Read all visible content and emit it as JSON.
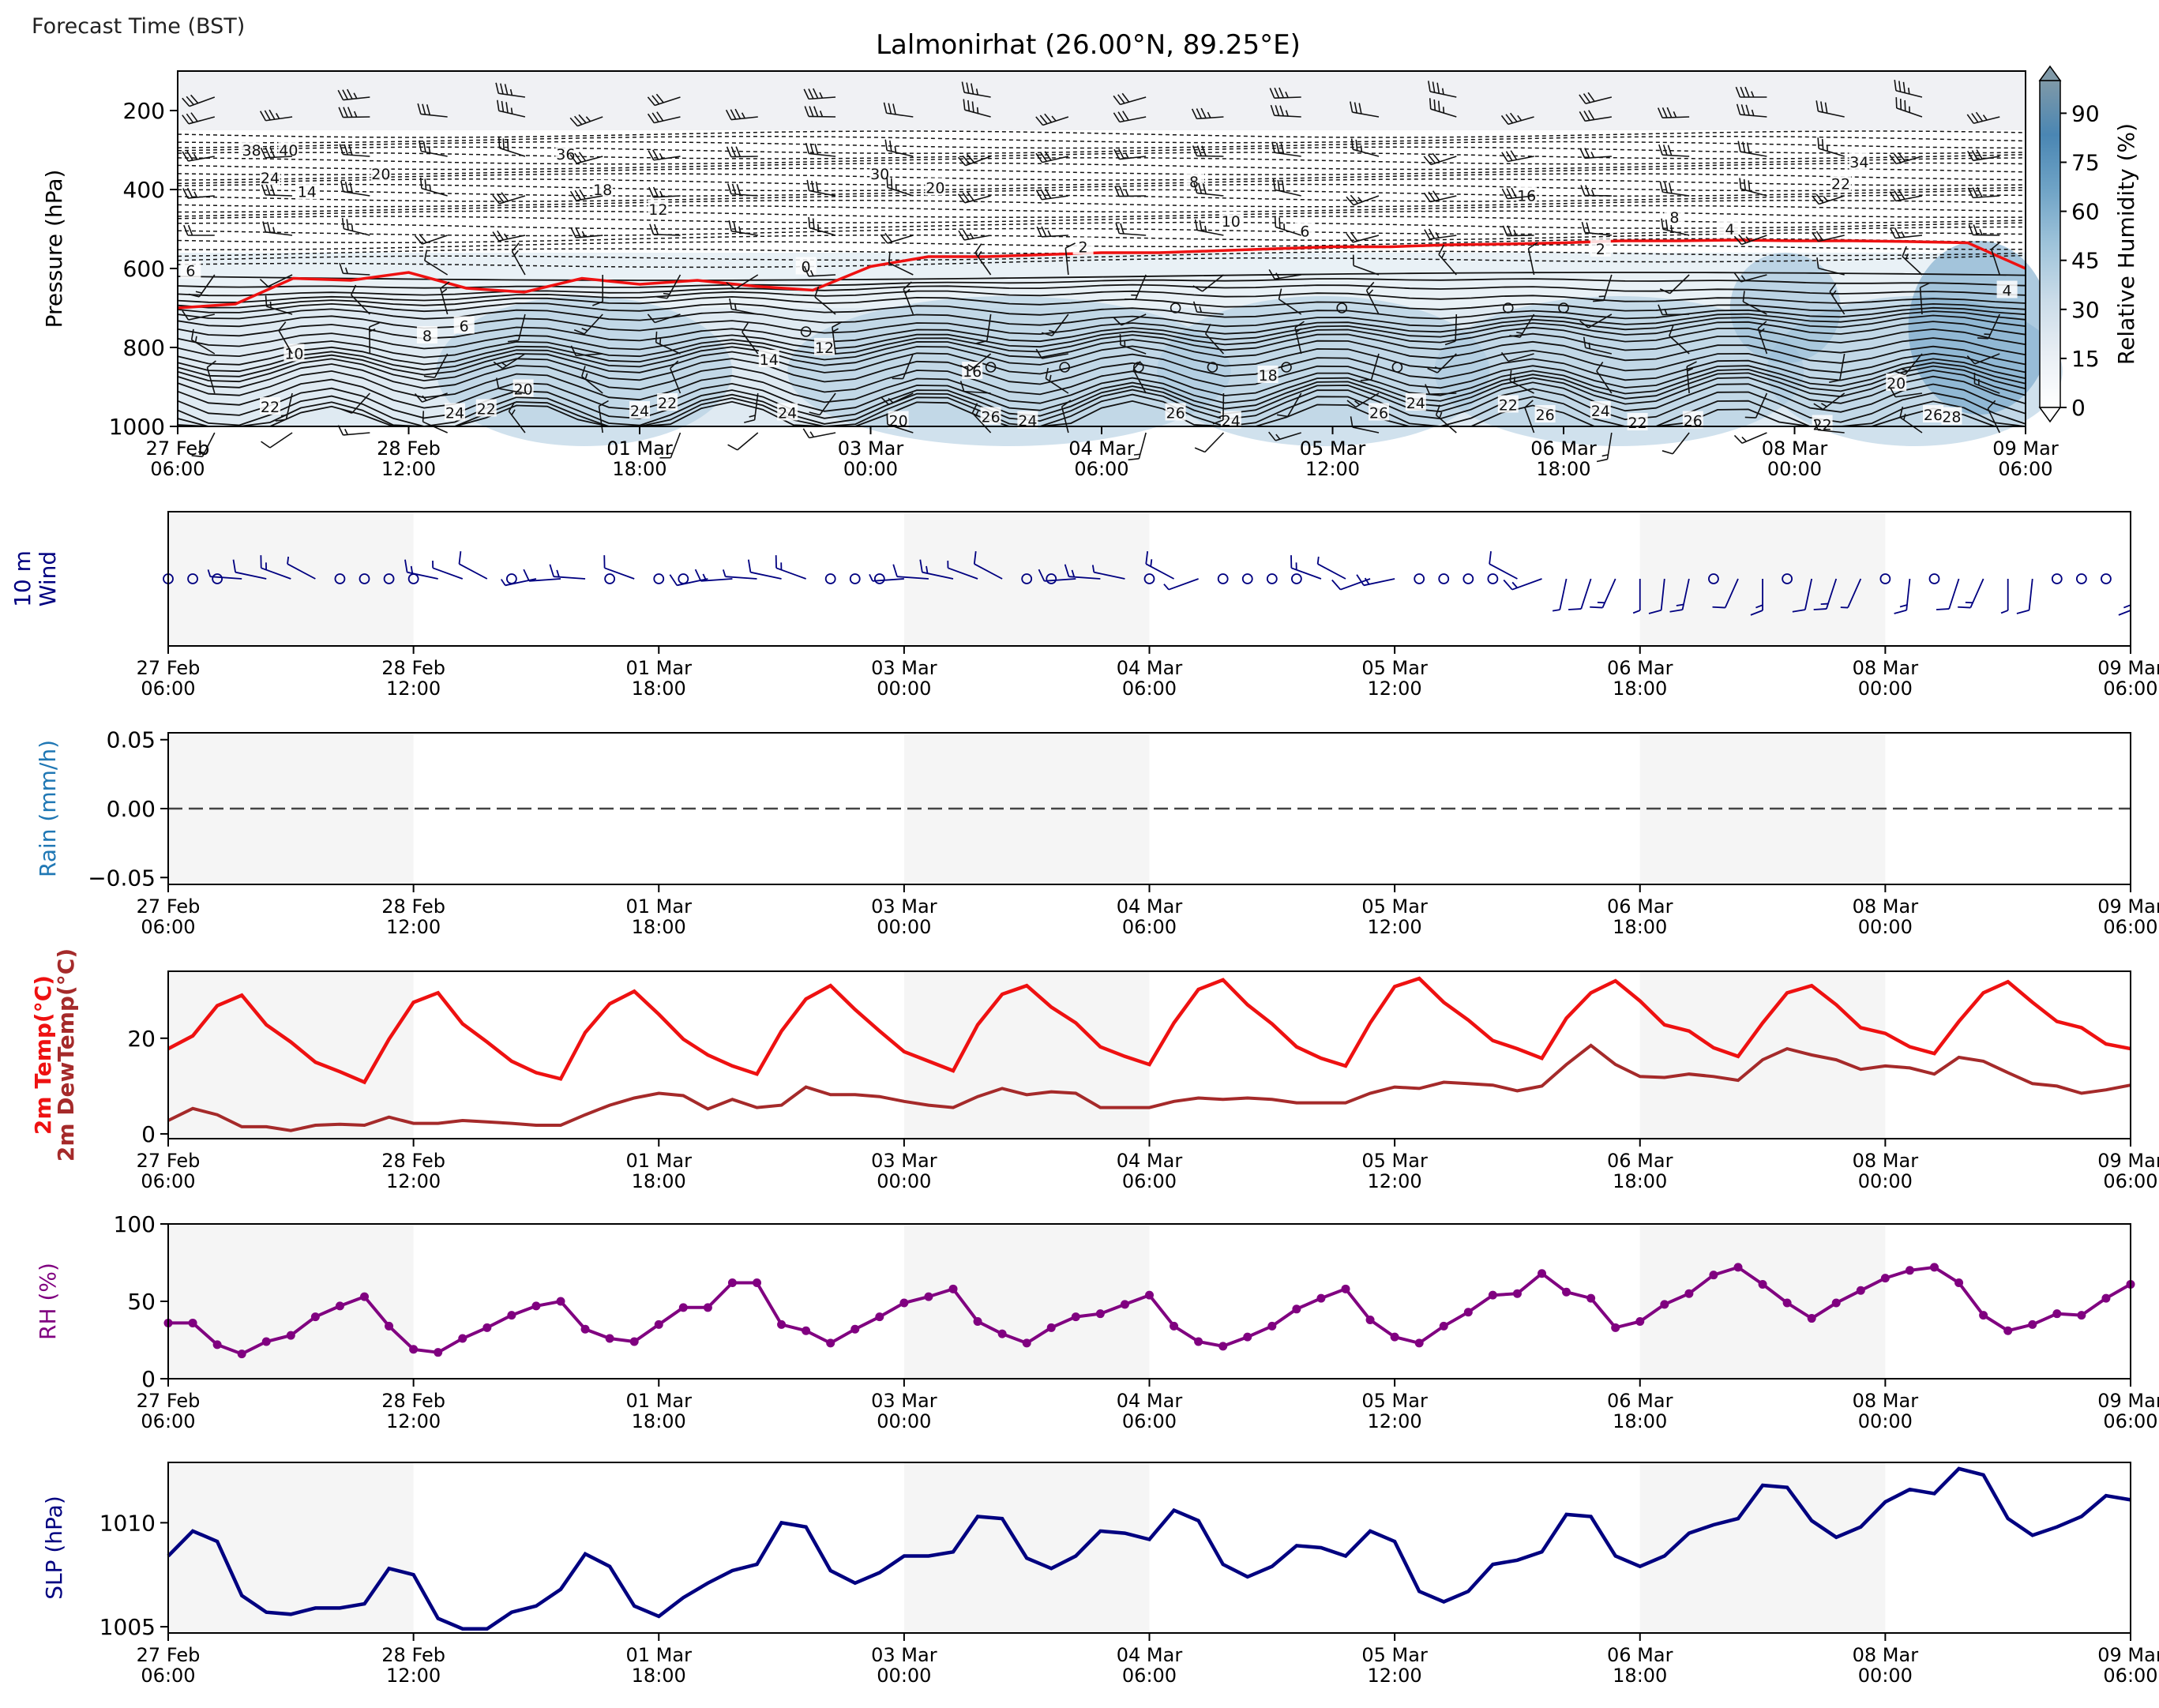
{
  "header": {
    "forecast_time_label": "Forecast Time (BST)"
  },
  "colors": {
    "freezing_line": "#ee1111",
    "temp": "#ee1111",
    "dewpoint": "#a52a2a",
    "rh": "#800080",
    "slp": "#000080",
    "wind10": "#000080",
    "rain_label": "#1f77b4",
    "night_shade": "#f5f5f5",
    "humidity_scale": [
      "#ffffff",
      "#e8eef4",
      "#c9dbe8",
      "#9ec3da",
      "#6fa3c6",
      "#4a86b3",
      "#7f99a8"
    ]
  },
  "chart_data": [
    {
      "id": "cross_section",
      "type": "heatmap",
      "title": "Lalmonirhat (26.00°N, 89.25°E)",
      "ylabel": "Pressure (hPa)",
      "y_ticks": [
        "200",
        "400",
        "600",
        "800",
        "1000"
      ],
      "ylim": [
        1000,
        100
      ],
      "x_ticks": [
        [
          "27 Feb",
          "06:00"
        ],
        [
          "28 Feb",
          "12:00"
        ],
        [
          "01 Mar",
          "18:00"
        ],
        [
          "03 Mar",
          "00:00"
        ],
        [
          "04 Mar",
          "06:00"
        ],
        [
          "05 Mar",
          "12:00"
        ],
        [
          "06 Mar",
          "18:00"
        ],
        [
          "08 Mar",
          "00:00"
        ],
        [
          "09 Mar",
          "06:00"
        ]
      ],
      "colorbar": {
        "label": "Relative Humidity (%)",
        "ticks": [
          "0",
          "15",
          "30",
          "45",
          "60",
          "75",
          "90"
        ],
        "range": [
          0,
          100
        ]
      },
      "freezing_level_hpa": [
        700,
        690,
        625,
        630,
        610,
        650,
        660,
        625,
        640,
        630,
        645,
        655,
        595,
        570,
        570,
        565,
        560,
        560,
        555,
        550,
        545,
        545,
        540,
        538,
        535,
        530,
        530,
        528,
        530,
        530,
        532,
        535,
        600
      ],
      "contour_labels": [
        {
          "t": 0.04,
          "p": 300,
          "v": "38"
        },
        {
          "t": 0.06,
          "p": 300,
          "v": "40"
        },
        {
          "t": 0.05,
          "p": 370,
          "v": "24"
        },
        {
          "t": 0.07,
          "p": 405,
          "v": "14"
        },
        {
          "t": 0.11,
          "p": 360,
          "v": "20"
        },
        {
          "t": 0.21,
          "p": 310,
          "v": "36"
        },
        {
          "t": 0.23,
          "p": 400,
          "v": "18"
        },
        {
          "t": 0.26,
          "p": 450,
          "v": "12"
        },
        {
          "t": 0.38,
          "p": 360,
          "v": "30"
        },
        {
          "t": 0.41,
          "p": 395,
          "v": "20"
        },
        {
          "t": 0.55,
          "p": 380,
          "v": "8"
        },
        {
          "t": 0.57,
          "p": 480,
          "v": "10"
        },
        {
          "t": 0.61,
          "p": 505,
          "v": "6"
        },
        {
          "t": 0.49,
          "p": 545,
          "v": "2"
        },
        {
          "t": 0.73,
          "p": 415,
          "v": "16"
        },
        {
          "t": 0.81,
          "p": 470,
          "v": "8"
        },
        {
          "t": 0.84,
          "p": 500,
          "v": "4"
        },
        {
          "t": 0.77,
          "p": 550,
          "v": "2"
        },
        {
          "t": 0.91,
          "p": 330,
          "v": "34"
        },
        {
          "t": 0.9,
          "p": 385,
          "v": "22"
        },
        {
          "t": 0.34,
          "p": 595,
          "v": "0"
        },
        {
          "t": 0.99,
          "p": 655,
          "v": "4"
        },
        {
          "t": 0.007,
          "p": 605,
          "v": "6"
        },
        {
          "t": 0.155,
          "p": 745,
          "v": "6"
        },
        {
          "t": 0.135,
          "p": 770,
          "v": "8"
        },
        {
          "t": 0.063,
          "p": 815,
          "v": "10"
        },
        {
          "t": 0.35,
          "p": 800,
          "v": "12"
        },
        {
          "t": 0.32,
          "p": 830,
          "v": "14"
        },
        {
          "t": 0.43,
          "p": 860,
          "v": "16"
        },
        {
          "t": 0.59,
          "p": 870,
          "v": "18"
        },
        {
          "t": 0.93,
          "p": 890,
          "v": "20"
        },
        {
          "t": 0.187,
          "p": 905,
          "v": "20"
        },
        {
          "t": 0.05,
          "p": 950,
          "v": "22"
        },
        {
          "t": 0.167,
          "p": 955,
          "v": "22"
        },
        {
          "t": 0.265,
          "p": 940,
          "v": "22"
        },
        {
          "t": 0.72,
          "p": 945,
          "v": "22"
        },
        {
          "t": 0.79,
          "p": 990,
          "v": "22"
        },
        {
          "t": 0.89,
          "p": 995,
          "v": "22"
        },
        {
          "t": 0.15,
          "p": 965,
          "v": "24"
        },
        {
          "t": 0.25,
          "p": 960,
          "v": "24"
        },
        {
          "t": 0.33,
          "p": 965,
          "v": "24"
        },
        {
          "t": 0.46,
          "p": 985,
          "v": "24"
        },
        {
          "t": 0.57,
          "p": 985,
          "v": "24"
        },
        {
          "t": 0.67,
          "p": 940,
          "v": "24"
        },
        {
          "t": 0.77,
          "p": 960,
          "v": "24"
        },
        {
          "t": 0.44,
          "p": 975,
          "v": "26"
        },
        {
          "t": 0.54,
          "p": 965,
          "v": "26"
        },
        {
          "t": 0.65,
          "p": 965,
          "v": "26"
        },
        {
          "t": 0.74,
          "p": 970,
          "v": "26"
        },
        {
          "t": 0.82,
          "p": 985,
          "v": "26"
        },
        {
          "t": 0.95,
          "p": 970,
          "v": "26"
        },
        {
          "t": 0.39,
          "p": 985,
          "v": "20"
        },
        {
          "t": 0.96,
          "p": 975,
          "v": "28"
        }
      ],
      "calm_points": [
        {
          "t": 0.54,
          "p": 700
        },
        {
          "t": 0.63,
          "p": 700
        },
        {
          "t": 0.72,
          "p": 700
        },
        {
          "t": 0.75,
          "p": 700
        },
        {
          "t": 0.44,
          "p": 850
        },
        {
          "t": 0.48,
          "p": 850
        },
        {
          "t": 0.52,
          "p": 850
        },
        {
          "t": 0.56,
          "p": 850
        },
        {
          "t": 0.6,
          "p": 850
        },
        {
          "t": 0.66,
          "p": 850
        },
        {
          "t": 0.34,
          "p": 760
        }
      ]
    },
    {
      "id": "wind10",
      "type": "scatter",
      "ylabel": [
        "10 m",
        "Wind"
      ],
      "x_ticks": [
        [
          "27 Feb",
          "06:00"
        ],
        [
          "28 Feb",
          "12:00"
        ],
        [
          "01 Mar",
          "18:00"
        ],
        [
          "03 Mar",
          "00:00"
        ],
        [
          "04 Mar",
          "06:00"
        ],
        [
          "05 Mar",
          "12:00"
        ],
        [
          "06 Mar",
          "18:00"
        ],
        [
          "08 Mar",
          "00:00"
        ],
        [
          "09 Mar",
          "06:00"
        ]
      ]
    },
    {
      "id": "rain",
      "type": "line",
      "ylabel": "Rain (mm/h)",
      "y_ticks": [
        "0.05",
        "0.00",
        "−0.05"
      ],
      "ylim": [
        -0.055,
        0.055
      ],
      "x_ticks": [
        [
          "27 Feb",
          "06:00"
        ],
        [
          "28 Feb",
          "12:00"
        ],
        [
          "01 Mar",
          "18:00"
        ],
        [
          "03 Mar",
          "00:00"
        ],
        [
          "04 Mar",
          "06:00"
        ],
        [
          "05 Mar",
          "12:00"
        ],
        [
          "06 Mar",
          "18:00"
        ],
        [
          "08 Mar",
          "00:00"
        ],
        [
          "09 Mar",
          "06:00"
        ]
      ],
      "values": [
        0,
        0
      ]
    },
    {
      "id": "temperature",
      "type": "line",
      "ylabel": [
        "2m Temp(°C)",
        "2m DewTemp(°C)"
      ],
      "y_ticks": [
        "0",
        "20"
      ],
      "ylim": [
        -1,
        34
      ],
      "x_ticks": [
        [
          "27 Feb",
          "06:00"
        ],
        [
          "28 Feb",
          "12:00"
        ],
        [
          "01 Mar",
          "18:00"
        ],
        [
          "03 Mar",
          "00:00"
        ],
        [
          "04 Mar",
          "06:00"
        ],
        [
          "05 Mar",
          "12:00"
        ],
        [
          "06 Mar",
          "18:00"
        ],
        [
          "08 Mar",
          "00:00"
        ],
        [
          "09 Mar",
          "06:00"
        ]
      ],
      "series": [
        {
          "values": [
            17.8,
            20.5,
            26.8,
            29.0,
            22.8,
            19.2,
            15.0,
            13.0,
            10.8,
            19.8,
            27.5,
            29.5,
            23.0,
            19.2,
            15.2,
            12.8,
            11.5,
            21.2,
            27.2,
            29.8,
            25.0,
            19.8,
            16.5,
            14.2,
            12.5,
            21.5,
            28.2,
            31.0,
            26.0,
            21.5,
            17.2,
            15.2,
            13.2,
            22.8,
            29.2,
            31.0,
            26.5,
            23.2,
            18.2,
            16.2,
            14.5,
            23.2,
            30.2,
            32.2,
            27.0,
            23.0,
            18.2,
            15.8,
            14.2,
            23.2,
            30.8,
            32.5,
            27.5,
            23.8,
            19.5,
            17.8,
            15.8,
            24.2,
            29.5,
            32.0,
            27.8,
            22.8,
            21.5,
            18.0,
            16.2,
            23.2,
            29.5,
            31.0,
            27.0,
            22.2,
            21.0,
            18.2,
            16.8,
            23.5,
            29.5,
            31.8,
            27.5,
            23.5,
            22.2,
            18.8,
            17.8
          ]
        },
        {
          "values": [
            2.8,
            5.3,
            4.0,
            1.5,
            1.5,
            0.7,
            1.8,
            2.0,
            1.8,
            3.5,
            2.2,
            2.2,
            2.8,
            2.5,
            2.2,
            1.8,
            1.8,
            4.0,
            6.0,
            7.5,
            8.5,
            8.0,
            5.2,
            7.2,
            5.5,
            6.0,
            9.8,
            8.2,
            8.2,
            7.8,
            6.8,
            6.0,
            5.5,
            7.8,
            9.5,
            8.2,
            8.8,
            8.5,
            5.5,
            5.5,
            5.5,
            6.8,
            7.5,
            7.2,
            7.5,
            7.2,
            6.5,
            6.5,
            6.5,
            8.5,
            9.8,
            9.5,
            10.8,
            10.5,
            10.2,
            9.0,
            10.0,
            14.5,
            18.5,
            14.5,
            12.0,
            11.8,
            12.5,
            12.0,
            11.2,
            15.5,
            17.8,
            16.5,
            15.5,
            13.5,
            14.2,
            13.8,
            12.5,
            16.0,
            15.2,
            12.8,
            10.5,
            10.0,
            8.5,
            9.2,
            10.2
          ]
        }
      ]
    },
    {
      "id": "rh",
      "type": "line",
      "ylabel": "RH (%)",
      "y_ticks": [
        "0",
        "50",
        "100"
      ],
      "ylim": [
        0,
        100
      ],
      "x_ticks": [
        [
          "27 Feb",
          "06:00"
        ],
        [
          "28 Feb",
          "12:00"
        ],
        [
          "01 Mar",
          "18:00"
        ],
        [
          "03 Mar",
          "00:00"
        ],
        [
          "04 Mar",
          "06:00"
        ],
        [
          "05 Mar",
          "12:00"
        ],
        [
          "06 Mar",
          "18:00"
        ],
        [
          "08 Mar",
          "00:00"
        ],
        [
          "09 Mar",
          "06:00"
        ]
      ],
      "values": [
        36,
        36,
        22,
        16,
        24,
        28,
        40,
        47,
        53,
        34,
        19,
        17,
        26,
        33,
        41,
        47,
        50,
        32,
        26,
        24,
        35,
        46,
        46,
        62,
        62,
        35,
        31,
        23,
        32,
        40,
        49,
        53,
        58,
        37,
        29,
        23,
        33,
        40,
        42,
        48,
        54,
        34,
        24,
        21,
        27,
        34,
        45,
        52,
        58,
        38,
        27,
        23,
        34,
        43,
        54,
        55,
        68,
        56,
        52,
        33,
        37,
        48,
        55,
        67,
        72,
        61,
        49,
        39,
        49,
        57,
        65,
        70,
        72,
        62,
        41,
        31,
        35,
        42,
        41,
        52,
        61
      ]
    },
    {
      "id": "slp",
      "type": "line",
      "ylabel": "SLP (hPa)",
      "y_ticks": [
        "1005",
        "1010"
      ],
      "ylim": [
        1004.7,
        1012.9
      ],
      "x_ticks": [
        [
          "27 Feb",
          "06:00"
        ],
        [
          "28 Feb",
          "12:00"
        ],
        [
          "01 Mar",
          "18:00"
        ],
        [
          "03 Mar",
          "00:00"
        ],
        [
          "04 Mar",
          "06:00"
        ],
        [
          "05 Mar",
          "12:00"
        ],
        [
          "06 Mar",
          "18:00"
        ],
        [
          "08 Mar",
          "00:00"
        ],
        [
          "09 Mar",
          "06:00"
        ]
      ],
      "values": [
        1008.4,
        1009.6,
        1009.1,
        1006.5,
        1005.7,
        1005.6,
        1005.9,
        1005.9,
        1006.1,
        1007.8,
        1007.5,
        1005.4,
        1004.9,
        1004.9,
        1005.7,
        1006.0,
        1006.8,
        1008.5,
        1007.9,
        1006.0,
        1005.5,
        1006.4,
        1007.1,
        1007.7,
        1008.0,
        1010.0,
        1009.8,
        1007.7,
        1007.1,
        1007.6,
        1008.4,
        1008.4,
        1008.6,
        1010.3,
        1010.2,
        1008.3,
        1007.8,
        1008.4,
        1009.6,
        1009.5,
        1009.2,
        1010.6,
        1010.1,
        1008.0,
        1007.4,
        1007.9,
        1008.9,
        1008.8,
        1008.4,
        1009.6,
        1009.1,
        1006.7,
        1006.2,
        1006.7,
        1008.0,
        1008.2,
        1008.6,
        1010.4,
        1010.3,
        1008.4,
        1007.9,
        1008.4,
        1009.5,
        1009.9,
        1010.2,
        1011.8,
        1011.7,
        1010.1,
        1009.3,
        1009.8,
        1011.0,
        1011.6,
        1011.4,
        1012.6,
        1012.3,
        1010.2,
        1009.4,
        1009.8,
        1010.3,
        1011.3,
        1011.1
      ]
    }
  ]
}
